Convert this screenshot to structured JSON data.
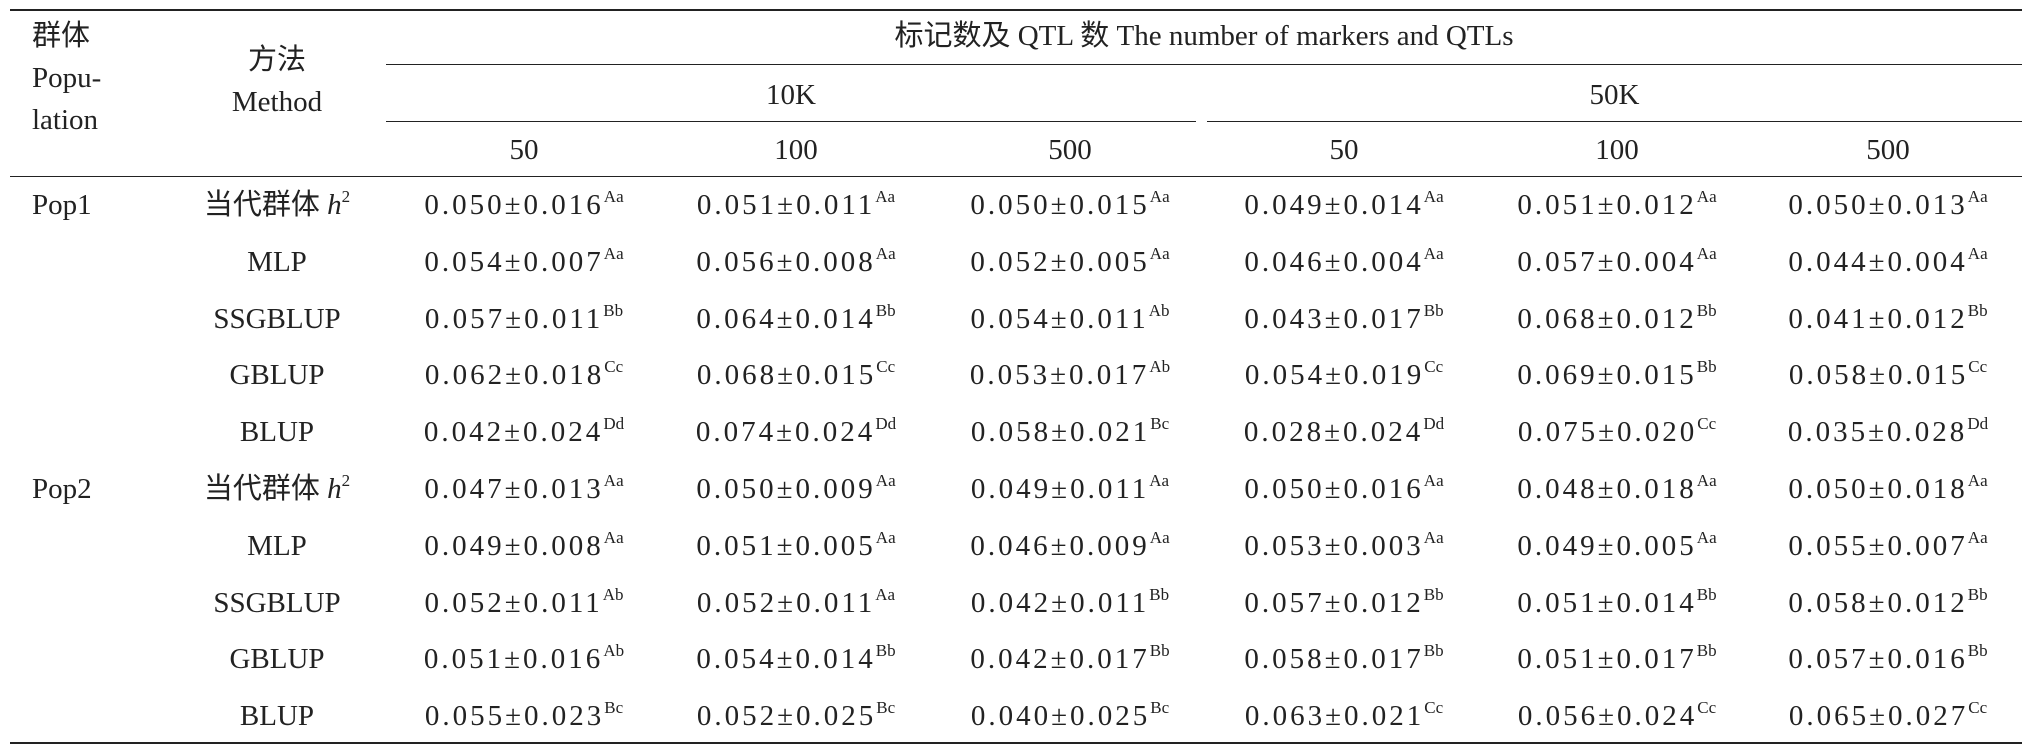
{
  "table": {
    "header": {
      "population": [
        "群体",
        "Popu-",
        "lation"
      ],
      "method": [
        "方法",
        "Method"
      ],
      "span_title": "标记数及 QTL 数 The number of markers and QTLs",
      "groups": [
        "10K",
        "50K"
      ],
      "sub": [
        [
          "50",
          "100",
          "500"
        ],
        [
          "50",
          "100",
          "500"
        ]
      ]
    },
    "groups": [
      {
        "population": "Pop1",
        "rows": [
          {
            "method": "当代群体",
            "method_var": "h",
            "method_sup": "2",
            "cells": [
              [
                "0.050±0.016",
                "Aa"
              ],
              [
                "0.051±0.011",
                "Aa"
              ],
              [
                "0.050±0.015",
                "Aa"
              ],
              [
                "0.049±0.014",
                "Aa"
              ],
              [
                "0.051±0.012",
                "Aa"
              ],
              [
                "0.050±0.013",
                "Aa"
              ]
            ]
          },
          {
            "method": "MLP",
            "cells": [
              [
                "0.054±0.007",
                "Aa"
              ],
              [
                "0.056±0.008",
                "Aa"
              ],
              [
                "0.052±0.005",
                "Aa"
              ],
              [
                "0.046±0.004",
                "Aa"
              ],
              [
                "0.057±0.004",
                "Aa"
              ],
              [
                "0.044±0.004",
                "Aa"
              ]
            ]
          },
          {
            "method": "SSGBLUP",
            "cells": [
              [
                "0.057±0.011",
                "Bb"
              ],
              [
                "0.064±0.014",
                "Bb"
              ],
              [
                "0.054±0.011",
                "Ab"
              ],
              [
                "0.043±0.017",
                "Bb"
              ],
              [
                "0.068±0.012",
                "Bb"
              ],
              [
                "0.041±0.012",
                "Bb"
              ]
            ]
          },
          {
            "method": "GBLUP",
            "cells": [
              [
                "0.062±0.018",
                "Cc"
              ],
              [
                "0.068±0.015",
                "Cc"
              ],
              [
                "0.053±0.017",
                "Ab"
              ],
              [
                "0.054±0.019",
                "Cc"
              ],
              [
                "0.069±0.015",
                "Bb"
              ],
              [
                "0.058±0.015",
                "Cc"
              ]
            ]
          },
          {
            "method": "BLUP",
            "cells": [
              [
                "0.042±0.024",
                "Dd"
              ],
              [
                "0.074±0.024",
                "Dd"
              ],
              [
                "0.058±0.021",
                "Bc"
              ],
              [
                "0.028±0.024",
                "Dd"
              ],
              [
                "0.075±0.020",
                "Cc"
              ],
              [
                "0.035±0.028",
                "Dd"
              ]
            ]
          }
        ]
      },
      {
        "population": "Pop2",
        "rows": [
          {
            "method": "当代群体",
            "method_var": "h",
            "method_sup": "2",
            "cells": [
              [
                "0.047±0.013",
                "Aa"
              ],
              [
                "0.050±0.009",
                "Aa"
              ],
              [
                "0.049±0.011",
                "Aa"
              ],
              [
                "0.050±0.016",
                "Aa"
              ],
              [
                "0.048±0.018",
                "Aa"
              ],
              [
                "0.050±0.018",
                "Aa"
              ]
            ]
          },
          {
            "method": "MLP",
            "cells": [
              [
                "0.049±0.008",
                "Aa"
              ],
              [
                "0.051±0.005",
                "Aa"
              ],
              [
                "0.046±0.009",
                "Aa"
              ],
              [
                "0.053±0.003",
                "Aa"
              ],
              [
                "0.049±0.005",
                "Aa"
              ],
              [
                "0.055±0.007",
                "Aa"
              ]
            ]
          },
          {
            "method": "SSGBLUP",
            "cells": [
              [
                "0.052±0.011",
                "Ab"
              ],
              [
                "0.052±0.011",
                "Aa"
              ],
              [
                "0.042±0.011",
                "Bb"
              ],
              [
                "0.057±0.012",
                "Bb"
              ],
              [
                "0.051±0.014",
                "Bb"
              ],
              [
                "0.058±0.012",
                "Bb"
              ]
            ]
          },
          {
            "method": "GBLUP",
            "cells": [
              [
                "0.051±0.016",
                "Ab"
              ],
              [
                "0.054±0.014",
                "Bb"
              ],
              [
                "0.042±0.017",
                "Bb"
              ],
              [
                "0.058±0.017",
                "Bb"
              ],
              [
                "0.051±0.017",
                "Bb"
              ],
              [
                "0.057±0.016",
                "Bb"
              ]
            ]
          },
          {
            "method": "BLUP",
            "cells": [
              [
                "0.055±0.023",
                "Bc"
              ],
              [
                "0.052±0.025",
                "Bc"
              ],
              [
                "0.040±0.025",
                "Bc"
              ],
              [
                "0.063±0.021",
                "Cc"
              ],
              [
                "0.056±0.024",
                "Cc"
              ],
              [
                "0.065±0.027",
                "Cc"
              ]
            ]
          }
        ]
      }
    ]
  }
}
